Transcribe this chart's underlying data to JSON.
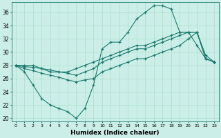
{
  "xlabel": "Humidex (Indice chaleur)",
  "background_color": "#cceee8",
  "grid_color": "#aaddcc",
  "line_color": "#1a7a6e",
  "xlim": [
    -0.5,
    23.5
  ],
  "ylim": [
    19.5,
    37.5
  ],
  "yticks": [
    20,
    22,
    24,
    26,
    28,
    30,
    32,
    34,
    36
  ],
  "xticks": [
    0,
    1,
    2,
    3,
    4,
    5,
    6,
    7,
    8,
    9,
    10,
    11,
    12,
    13,
    14,
    15,
    16,
    17,
    18,
    19,
    20,
    21,
    22,
    23
  ],
  "series": [
    {
      "x": [
        0,
        1,
        2,
        3,
        4,
        5,
        6,
        7,
        8,
        9,
        10,
        11,
        12,
        13,
        14,
        15,
        16,
        17,
        18,
        19,
        20,
        21,
        22,
        23
      ],
      "y": [
        28,
        27,
        25,
        23,
        22,
        21.5,
        21,
        20,
        21.5,
        25,
        30.5,
        31.5,
        31.5,
        33,
        35,
        36,
        37,
        37,
        36.5,
        33,
        33,
        31,
        29,
        28.5
      ]
    },
    {
      "x": [
        0,
        1,
        2,
        3,
        4,
        5,
        6,
        7,
        8,
        9,
        10,
        11,
        12,
        13,
        14,
        15,
        16,
        17,
        18,
        19,
        20,
        21,
        22,
        23
      ],
      "y": [
        28,
        28,
        28,
        27.5,
        27,
        27,
        27,
        27.5,
        28,
        28.5,
        29,
        29.5,
        30,
        30.5,
        31,
        31,
        31.5,
        32,
        32.5,
        33,
        33,
        33,
        29,
        28.5
      ]
    },
    {
      "x": [
        0,
        1,
        2,
        3,
        4,
        5,
        6,
        7,
        8,
        9,
        10,
        11,
        12,
        13,
        14,
        15,
        16,
        17,
        18,
        19,
        20,
        21,
        22,
        23
      ],
      "y": [
        28,
        27.8,
        27.7,
        27.5,
        27.3,
        27,
        26.8,
        26.5,
        27,
        27.5,
        28.5,
        29,
        29.5,
        30,
        30.5,
        30.5,
        31,
        31.5,
        32,
        32.5,
        33,
        33,
        29.5,
        28.5
      ]
    },
    {
      "x": [
        0,
        1,
        2,
        3,
        4,
        5,
        6,
        7,
        8,
        9,
        10,
        11,
        12,
        13,
        14,
        15,
        16,
        17,
        18,
        19,
        20,
        21,
        22,
        23
      ],
      "y": [
        28,
        27.5,
        27.2,
        26.8,
        26.5,
        26.2,
        25.8,
        25.5,
        25.8,
        26,
        27,
        27.5,
        28,
        28.5,
        29,
        29,
        29.5,
        30,
        30.5,
        31,
        32,
        33,
        29,
        28.5
      ]
    }
  ]
}
